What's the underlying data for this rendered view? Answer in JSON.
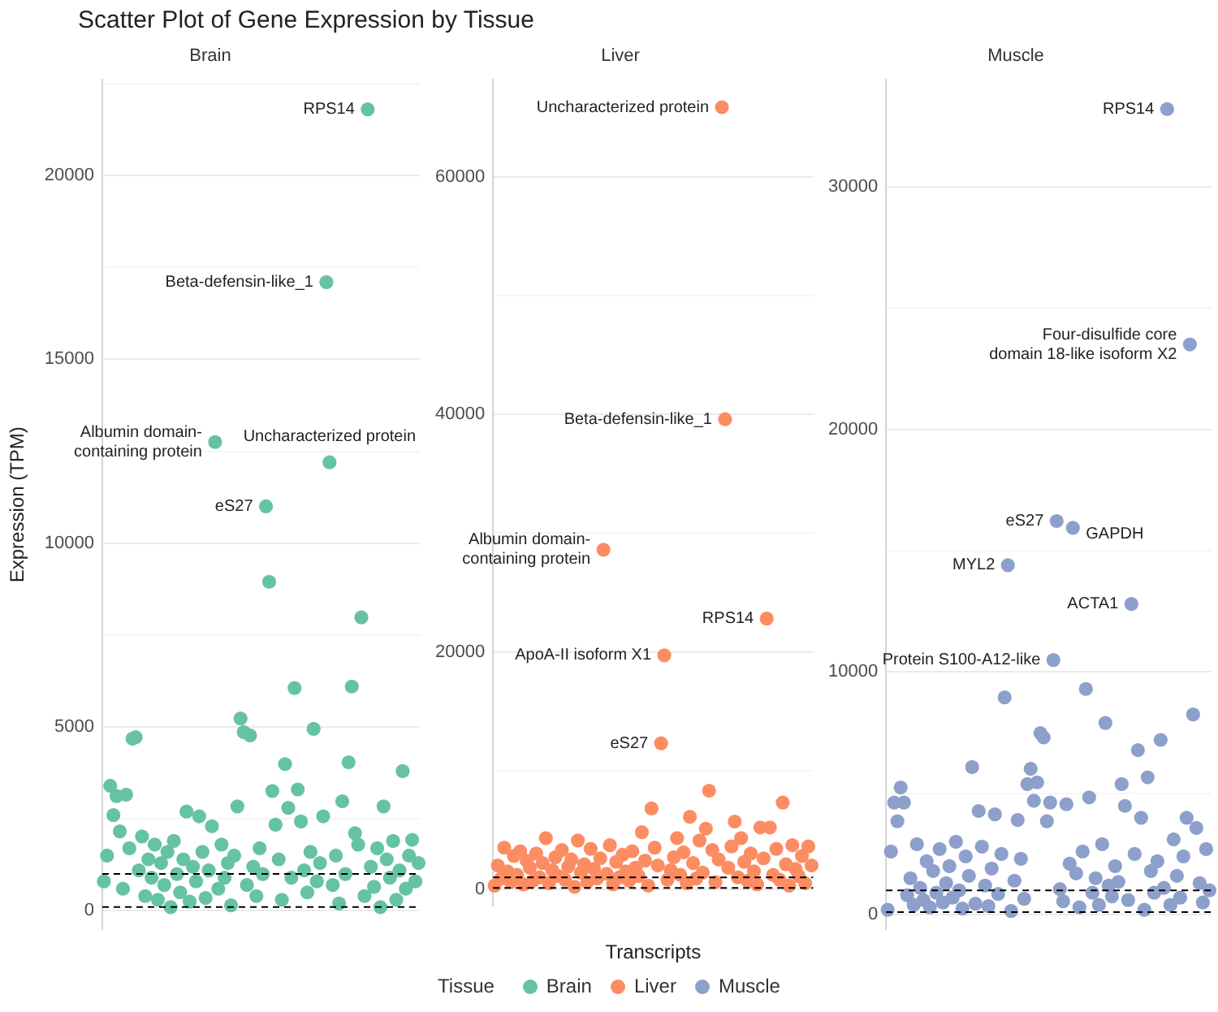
{
  "chart_data": [
    {
      "type": "scatter",
      "title": "Scatter Plot of Gene Expression by Tissue",
      "subtitle": "Brain",
      "ylabel": "Expression (TPM)",
      "legend": "bottom",
      "legend_title": "Tissue",
      "grid": "y",
      "marker": "circle",
      "tick_labels": "y",
      "categories": [
        null,
        null,
        null,
        null,
        null,
        null,
        null,
        null,
        null,
        null,
        null,
        null,
        null,
        null,
        null,
        null,
        null,
        null,
        null,
        null,
        null,
        null,
        null,
        null,
        null,
        null,
        null,
        null,
        null,
        null,
        null,
        null,
        null,
        null,
        null,
        null,
        null,
        null,
        null,
        null,
        null,
        null,
        null,
        null,
        null,
        null,
        null,
        null,
        null,
        null,
        null,
        null,
        null,
        null,
        null,
        null,
        null,
        null,
        null,
        null,
        null,
        null,
        null,
        null,
        null,
        null,
        null,
        null,
        null,
        null,
        null,
        null,
        null,
        null,
        null,
        null,
        null,
        null,
        null,
        null,
        null,
        null,
        null,
        null,
        null,
        null,
        null,
        null,
        null,
        null,
        null,
        null,
        null,
        null,
        null,
        null,
        null,
        null,
        null,
        null
      ],
      "ylim": [
        -500,
        22600
      ],
      "yticks": [
        0,
        {
          "value": 2500,
          "label": null
        },
        5000,
        {
          "value": 7500,
          "label": null
        },
        10000,
        {
          "value": 12500,
          "label": null
        },
        15000,
        {
          "value": 17500,
          "label": null
        },
        20000,
        {
          "value": 22500,
          "label": null
        }
      ],
      "series": [
        {
          "name": "Brain",
          "color": "#66c2a5",
          "values": [
            800,
            1500,
            3400,
            2600,
            3120,
            2160,
            600,
            3160,
            1700,
            4680,
            4720,
            1100,
            2020,
            400,
            1400,
            900,
            1800,
            300,
            1300,
            700,
            1600,
            100,
            1900,
            1000,
            500,
            1400,
            2700,
            250,
            1200,
            800,
            2570,
            1600,
            350,
            1100,
            2300,
            12750,
            600,
            1800,
            900,
            1300,
            150,
            1500,
            2840,
            5230,
            4860,
            700,
            4770,
            1200,
            400,
            1700,
            1000,
            11000,
            8950,
            3260,
            2340,
            1400,
            300,
            3990,
            2800,
            900,
            6060,
            3300,
            2430,
            1100,
            500,
            1600,
            4950,
            800,
            1300,
            2570,
            17100,
            12200,
            700,
            1500,
            200,
            2980,
            1000,
            4040,
            6100,
            2110,
            1800,
            7980,
            400,
            21800,
            1200,
            650,
            1700,
            100,
            2840,
            1400,
            900,
            1900,
            300,
            1100,
            3800,
            600,
            1500,
            1930,
            800,
            1300
          ]
        }
      ],
      "ref_lines": [
        {
          "axis": "y",
          "value": 1000,
          "color": "#000000",
          "line_style": "dashed"
        },
        {
          "axis": "y",
          "value": 100,
          "color": "#000000",
          "line_style": "dashed"
        }
      ],
      "annotations": [
        "RPS14",
        "Beta-defensin-like_1",
        "Albumin domain-containing protein",
        "Uncharacterized protein",
        "eS27"
      ]
    },
    {
      "type": "scatter",
      "subtitle": "Liver",
      "xlabel": "Transcripts",
      "legend": "bottom",
      "grid": "y",
      "marker": "circle",
      "tick_labels": "y",
      "categories": [
        null,
        null,
        null,
        null,
        null,
        null,
        null,
        null,
        null,
        null,
        null,
        null,
        null,
        null,
        null,
        null,
        null,
        null,
        null,
        null,
        null,
        null,
        null,
        null,
        null,
        null,
        null,
        null,
        null,
        null,
        null,
        null,
        null,
        null,
        null,
        null,
        null,
        null,
        null,
        null,
        null,
        null,
        null,
        null,
        null,
        null,
        null,
        null,
        null,
        null,
        null,
        null,
        null,
        null,
        null,
        null,
        null,
        null,
        null,
        null,
        null,
        null,
        null,
        null,
        null,
        null,
        null,
        null,
        null,
        null,
        null,
        null,
        null,
        null,
        null,
        null,
        null,
        null,
        null,
        null,
        null,
        null,
        null,
        null,
        null,
        null,
        null,
        null,
        null,
        null,
        null,
        null,
        null,
        null,
        null,
        null,
        null,
        null,
        null,
        null
      ],
      "ylim": [
        -1400,
        68200
      ],
      "yticks": [
        0,
        {
          "value": 10000,
          "label": null
        },
        20000,
        {
          "value": 30000,
          "label": null
        },
        40000,
        {
          "value": 50000,
          "label": null
        },
        60000
      ],
      "series": [
        {
          "name": "Liver",
          "color": "#fc8d62",
          "values": [
            300,
            2000,
            900,
            3500,
            1500,
            600,
            2800,
            1200,
            3200,
            400,
            2400,
            1800,
            700,
            3000,
            1000,
            2200,
            4300,
            500,
            1600,
            2700,
            1100,
            3300,
            800,
            1900,
            2500,
            200,
            4100,
            1400,
            2100,
            600,
            3400,
            1700,
            900,
            2600,
            28600,
            1300,
            3700,
            400,
            2300,
            1000,
            2900,
            1500,
            700,
            3200,
            1800,
            1100,
            4800,
            2400,
            300,
            6800,
            3500,
            2000,
            12300,
            19700,
            800,
            1600,
            2700,
            4300,
            1200,
            3100,
            500,
            6100,
            2200,
            900,
            4100,
            1400,
            5100,
            8300,
            3300,
            600,
            2500,
            65900,
            39600,
            1800,
            3600,
            5700,
            1000,
            4300,
            2300,
            700,
            3000,
            1500,
            400,
            5200,
            2600,
            22800,
            5200,
            1200,
            3400,
            800,
            7300,
            2100,
            300,
            3700,
            1700,
            1100,
            2800,
            500,
            3600,
            2000
          ]
        }
      ],
      "ref_lines": [
        {
          "axis": "y",
          "value": 1000,
          "color": "#000000",
          "line_style": "dashed"
        },
        {
          "axis": "y",
          "value": 100,
          "color": "#000000",
          "line_style": "dashed"
        }
      ],
      "annotations": [
        "Uncharacterized protein",
        "Beta-defensin-like_1",
        "Albumin domain-containing protein",
        "RPS14",
        "ApoA-II isoform X1",
        "eS27"
      ]
    },
    {
      "type": "scatter",
      "subtitle": "Muscle",
      "legend": "bottom",
      "grid": "y",
      "marker": "circle",
      "tick_labels": "y",
      "categories": [
        null,
        null,
        null,
        null,
        null,
        null,
        null,
        null,
        null,
        null,
        null,
        null,
        null,
        null,
        null,
        null,
        null,
        null,
        null,
        null,
        null,
        null,
        null,
        null,
        null,
        null,
        null,
        null,
        null,
        null,
        null,
        null,
        null,
        null,
        null,
        null,
        null,
        null,
        null,
        null,
        null,
        null,
        null,
        null,
        null,
        null,
        null,
        null,
        null,
        null,
        null,
        null,
        null,
        null,
        null,
        null,
        null,
        null,
        null,
        null,
        null,
        null,
        null,
        null,
        null,
        null,
        null,
        null,
        null,
        null,
        null,
        null,
        null,
        null,
        null,
        null,
        null,
        null,
        null,
        null,
        null,
        null,
        null,
        null,
        null,
        null,
        null,
        null,
        null,
        null,
        null,
        null,
        null,
        null,
        null,
        null,
        null,
        null,
        null,
        null
      ],
      "ylim": [
        -600,
        34400
      ],
      "yticks": [
        0,
        {
          "value": 5000,
          "label": null
        },
        10000,
        {
          "value": 15000,
          "label": null
        },
        20000,
        {
          "value": 25000,
          "label": null
        },
        30000
      ],
      "series": [
        {
          "name": "Muscle",
          "color": "#8da0cb",
          "values": [
            200,
            2600,
            4620,
            3850,
            5240,
            4620,
            800,
            1500,
            400,
            2900,
            1100,
            600,
            2200,
            300,
            1800,
            900,
            2700,
            500,
            1300,
            2000,
            700,
            3000,
            1000,
            250,
            2400,
            1600,
            6080,
            450,
            4270,
            2800,
            1200,
            350,
            1900,
            4130,
            850,
            2500,
            8950,
            14400,
            150,
            1400,
            3900,
            2300,
            650,
            5380,
            6010,
            4690,
            5450,
            7480,
            7300,
            3850,
            4620,
            10490,
            16220,
            1050,
            550,
            4550,
            2100,
            15940,
            1700,
            300,
            2600,
            9300,
            4830,
            900,
            1500,
            400,
            2900,
            7900,
            1200,
            750,
            2000,
            1350,
            5380,
            4480,
            600,
            12800,
            2500,
            6780,
            3990,
            200,
            5660,
            1800,
            900,
            2200,
            7200,
            1100,
            33200,
            400,
            3100,
            1600,
            700,
            2400,
            3990,
            23500,
            8250,
            3570,
            1300,
            500,
            2700,
            1000
          ]
        }
      ],
      "ref_lines": [
        {
          "axis": "y",
          "value": 1000,
          "color": "#000000",
          "line_style": "dashed"
        },
        {
          "axis": "y",
          "value": 100,
          "color": "#000000",
          "line_style": "dashed"
        }
      ],
      "annotations": [
        "RPS14",
        "Four-disulfide core domain 18-like isoform X2",
        "eS27",
        "GAPDH",
        "MYL2",
        "ACTA1",
        "Protein S100-A12-like"
      ]
    }
  ]
}
